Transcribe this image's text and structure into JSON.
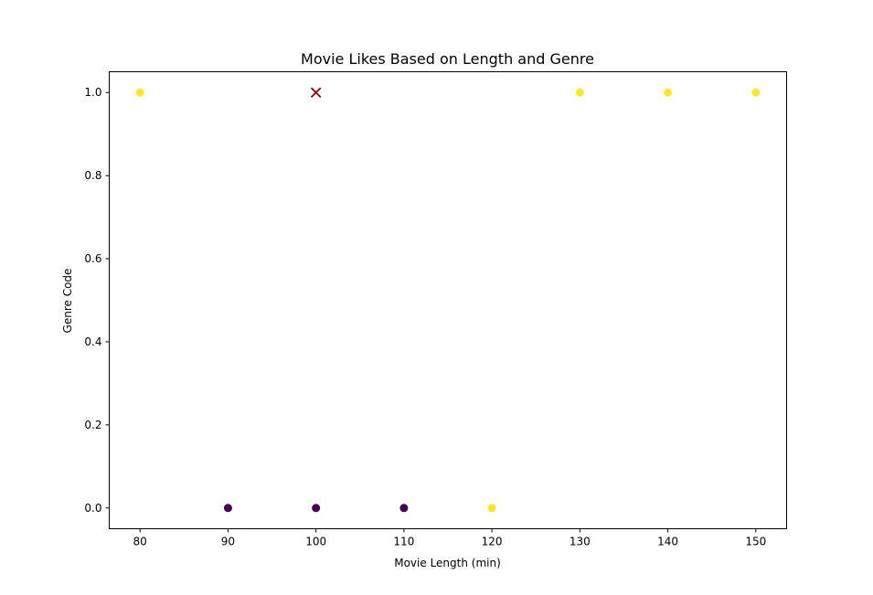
{
  "chart_data": {
    "type": "scatter",
    "title": "Movie Likes Based on Length and Genre",
    "xlabel": "Movie Length (min)",
    "ylabel": "Genre Code",
    "xlim": [
      76.5,
      153.5
    ],
    "ylim": [
      -0.05,
      1.05
    ],
    "xticks": [
      80,
      90,
      100,
      110,
      120,
      130,
      140,
      150
    ],
    "yticks": [
      0.0,
      0.2,
      0.4,
      0.6,
      0.8,
      1.0
    ],
    "grid": false,
    "colors": {
      "liked": "#fde725",
      "not_liked": "#440154",
      "query": "#8b0000"
    },
    "points": [
      {
        "x": 80,
        "y": 1,
        "liked": 1
      },
      {
        "x": 90,
        "y": 0,
        "liked": 0
      },
      {
        "x": 100,
        "y": 0,
        "liked": 0
      },
      {
        "x": 110,
        "y": 0,
        "liked": 0
      },
      {
        "x": 120,
        "y": 0,
        "liked": 1
      },
      {
        "x": 130,
        "y": 1,
        "liked": 1
      },
      {
        "x": 140,
        "y": 1,
        "liked": 1
      },
      {
        "x": 150,
        "y": 1,
        "liked": 1
      }
    ],
    "query_point": {
      "x": 100,
      "y": 1,
      "marker": "x"
    }
  }
}
